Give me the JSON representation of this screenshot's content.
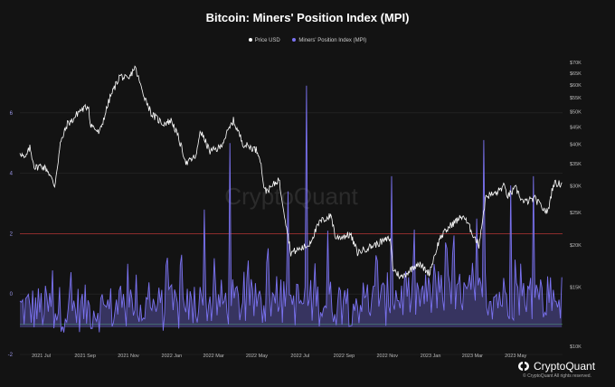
{
  "chart_data": {
    "type": "line",
    "title": "Bitcoin: Miners' Position Index (MPI)",
    "series": [
      {
        "name": "Price USD",
        "color": "#ffffff",
        "axis": "right",
        "x": [
          "2021-06-01",
          "2021-06-08",
          "2021-06-15",
          "2021-06-22",
          "2021-07-01",
          "2021-07-10",
          "2021-07-20",
          "2021-07-28",
          "2021-08-07",
          "2021-08-14",
          "2021-08-23",
          "2021-09-06",
          "2021-09-08",
          "2021-09-21",
          "2021-10-06",
          "2021-10-20",
          "2021-11-01",
          "2021-11-10",
          "2021-11-20",
          "2021-12-04",
          "2021-12-20",
          "2022-01-01",
          "2022-01-10",
          "2022-01-22",
          "2022-02-05",
          "2022-02-10",
          "2022-02-24",
          "2022-03-10",
          "2022-03-29",
          "2022-04-12",
          "2022-04-30",
          "2022-05-05",
          "2022-05-12",
          "2022-05-20",
          "2022-06-01",
          "2022-06-13",
          "2022-06-18",
          "2022-07-01",
          "2022-07-13",
          "2022-07-29",
          "2022-08-14",
          "2022-08-20",
          "2022-09-10",
          "2022-09-20",
          "2022-10-01",
          "2022-10-25",
          "2022-11-05",
          "2022-11-09",
          "2022-11-21",
          "2022-12-14",
          "2022-12-30",
          "2023-01-14",
          "2023-01-30",
          "2023-02-16",
          "2023-03-10",
          "2023-03-20",
          "2023-04-03",
          "2023-04-14",
          "2023-04-20",
          "2023-05-01",
          "2023-05-12",
          "2023-05-28",
          "2023-06-10",
          "2023-06-15",
          "2023-06-23",
          "2023-07-05"
        ],
        "values": [
          38000,
          36000,
          39000,
          34000,
          34500,
          33500,
          30000,
          40000,
          46000,
          47000,
          50000,
          52000,
          46000,
          43000,
          55000,
          64000,
          62000,
          68000,
          58000,
          49000,
          46000,
          47000,
          42000,
          35000,
          37000,
          44000,
          38000,
          39000,
          47000,
          40000,
          38500,
          37000,
          29000,
          29500,
          31500,
          22000,
          19000,
          19500,
          20000,
          23500,
          24500,
          21000,
          21500,
          19000,
          19500,
          20500,
          21000,
          17000,
          16000,
          17700,
          16500,
          21000,
          23000,
          24500,
          20000,
          28000,
          28500,
          30000,
          28000,
          29500,
          26800,
          27500,
          25500,
          25000,
          30500,
          30500
        ]
      },
      {
        "name": "Miners' Position Index (MPI)",
        "color": "#7a72f0",
        "axis": "left"
      }
    ],
    "annotations": [
      {
        "x": "2021-07-06",
        "y": 0.8
      },
      {
        "x": "2021-09-22",
        "y": 1.3
      },
      {
        "x": "2021-10-31",
        "y": 1.0
      },
      {
        "x": "2021-12-26",
        "y": 1.2
      },
      {
        "x": "2022-01-15",
        "y": 1.3
      },
      {
        "x": "2022-02-16",
        "y": 2.8
      },
      {
        "x": "2022-03-24",
        "y": 5.0
      },
      {
        "x": "2022-04-10",
        "y": 1.8
      },
      {
        "x": "2022-05-16",
        "y": 3.6
      },
      {
        "x": "2022-05-24",
        "y": 2.7
      },
      {
        "x": "2022-06-14",
        "y": 3.4
      },
      {
        "x": "2022-07-10",
        "y": 6.9
      },
      {
        "x": "2022-08-09",
        "y": 2.1
      },
      {
        "x": "2022-09-15",
        "y": 1.5
      },
      {
        "x": "2022-11-07",
        "y": 3.9
      },
      {
        "x": "2022-11-22",
        "y": 2.1
      },
      {
        "x": "2022-12-14",
        "y": 1.3
      },
      {
        "x": "2023-02-01",
        "y": 1.3
      },
      {
        "x": "2023-03-07",
        "y": 2.5
      },
      {
        "x": "2023-03-17",
        "y": 5.1
      },
      {
        "x": "2023-04-24",
        "y": 3.6
      },
      {
        "x": "2023-05-26",
        "y": 3.9
      },
      {
        "x": "2023-06-22",
        "y": 2.8
      }
    ],
    "legend_position": "top-center",
    "y_left": {
      "ylim": [
        -2,
        8
      ],
      "ticks": [
        "-2",
        "0",
        "2",
        "4",
        "6"
      ]
    },
    "y_right": {
      "scale": "log",
      "ylim": [
        10000,
        70000
      ],
      "ticks": [
        "$10K",
        "$15K",
        "$20K",
        "$25K",
        "$30K",
        "$35K",
        "$40K",
        "$45K",
        "$50K",
        "$55K",
        "$60K",
        "$65K",
        "$70K"
      ]
    },
    "x_ticks": [
      "2021 Jul",
      "2021 Sep",
      "2021 Nov",
      "2022 Jan",
      "2022 Mar",
      "2022 May",
      "2022 Jul",
      "2022 Sep",
      "2022 Nov",
      "2023 Jan",
      "2023 Mar",
      "2023 May"
    ],
    "reference_lines": [
      {
        "y": 2,
        "color": "#b03030"
      },
      {
        "y": -1,
        "color": "#2e7d32"
      }
    ]
  },
  "brand": {
    "name": "CryptoQuant",
    "copyright": "© CryptoQuant All rights reserved.",
    "watermark": "CryptoQuant"
  },
  "colors": {
    "background": "#131313",
    "grid": "#2a2a2a",
    "price": "#ffffff",
    "mpi": "#7a72f0"
  }
}
